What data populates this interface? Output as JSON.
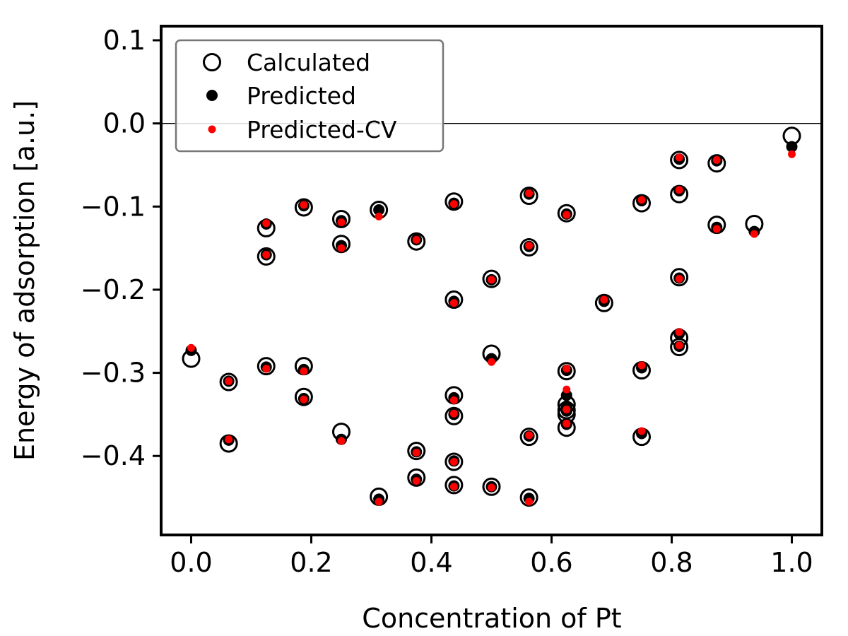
{
  "chart_data": {
    "type": "scatter",
    "title": "",
    "xlabel": "Concentration of Pt",
    "ylabel": "Energy of adsorption [a.u.]",
    "xlim": [
      -0.05,
      1.05
    ],
    "ylim": [
      -0.495,
      0.117
    ],
    "xticks": [
      0.0,
      0.2,
      0.4,
      0.6,
      0.8,
      1.0
    ],
    "xtick_labels": [
      "0.0",
      "0.2",
      "0.4",
      "0.6",
      "0.8",
      "1.0"
    ],
    "yticks": [
      0.1,
      0.0,
      -0.1,
      -0.2,
      -0.3,
      -0.4
    ],
    "ytick_labels": [
      "0.1",
      "0.0",
      "−0.1",
      "−0.2",
      "−0.3",
      "−0.4"
    ],
    "grid": false,
    "reference_line": {
      "y": 0.0
    },
    "legend": {
      "placement": "top-left",
      "entries": [
        "Calculated",
        "Predicted",
        "Predicted-CV"
      ]
    },
    "colors": {
      "calculated": "#000000",
      "predicted": "#000000",
      "predicted_cv": "#ff0000"
    },
    "series": [
      {
        "name": "Calculated",
        "marker": "open-circle",
        "x": [
          0.0,
          0.0625,
          0.0625,
          0.125,
          0.125,
          0.125,
          0.1875,
          0.1875,
          0.1875,
          0.25,
          0.25,
          0.25,
          0.3125,
          0.3125,
          0.375,
          0.375,
          0.375,
          0.4375,
          0.4375,
          0.4375,
          0.4375,
          0.4375,
          0.4375,
          0.5,
          0.5,
          0.5,
          0.5625,
          0.5625,
          0.5625,
          0.5625,
          0.625,
          0.625,
          0.625,
          0.625,
          0.625,
          0.625,
          0.6875,
          0.75,
          0.75,
          0.75,
          0.8125,
          0.8125,
          0.8125,
          0.8125,
          0.8125,
          0.875,
          0.875,
          0.9375,
          1.0
        ],
        "y": [
          -0.283,
          -0.311,
          -0.385,
          -0.126,
          -0.16,
          -0.292,
          -0.101,
          -0.292,
          -0.329,
          -0.115,
          -0.145,
          -0.371,
          -0.104,
          -0.449,
          -0.142,
          -0.394,
          -0.426,
          -0.094,
          -0.212,
          -0.327,
          -0.352,
          -0.407,
          -0.435,
          -0.187,
          -0.277,
          -0.437,
          -0.087,
          -0.149,
          -0.377,
          -0.45,
          -0.108,
          -0.298,
          -0.338,
          -0.345,
          -0.35,
          -0.366,
          -0.216,
          -0.096,
          -0.297,
          -0.377,
          -0.044,
          -0.085,
          -0.185,
          -0.258,
          -0.269,
          -0.048,
          -0.122,
          -0.121,
          -0.015
        ]
      },
      {
        "name": "Predicted",
        "marker": "filled-circle",
        "x": [
          0.0,
          0.0625,
          0.0625,
          0.125,
          0.125,
          0.125,
          0.1875,
          0.1875,
          0.1875,
          0.25,
          0.25,
          0.25,
          0.3125,
          0.3125,
          0.375,
          0.375,
          0.375,
          0.4375,
          0.4375,
          0.4375,
          0.4375,
          0.4375,
          0.4375,
          0.5,
          0.5,
          0.5,
          0.5625,
          0.5625,
          0.5625,
          0.5625,
          0.625,
          0.625,
          0.625,
          0.625,
          0.625,
          0.625,
          0.6875,
          0.75,
          0.75,
          0.75,
          0.8125,
          0.8125,
          0.8125,
          0.8125,
          0.8125,
          0.875,
          0.875,
          0.9375,
          1.0
        ],
        "y": [
          -0.273,
          -0.31,
          -0.381,
          -0.121,
          -0.158,
          -0.293,
          -0.099,
          -0.296,
          -0.331,
          -0.117,
          -0.147,
          -0.38,
          -0.104,
          -0.452,
          -0.14,
          -0.395,
          -0.428,
          -0.096,
          -0.214,
          -0.33,
          -0.35,
          -0.406,
          -0.436,
          -0.188,
          -0.283,
          -0.437,
          -0.085,
          -0.148,
          -0.376,
          -0.451,
          -0.109,
          -0.297,
          -0.327,
          -0.34,
          -0.346,
          -0.362,
          -0.214,
          -0.093,
          -0.294,
          -0.373,
          -0.043,
          -0.081,
          -0.186,
          -0.253,
          -0.268,
          -0.045,
          -0.125,
          -0.13,
          -0.028
        ]
      },
      {
        "name": "Predicted-CV",
        "marker": "small-filled-circle",
        "x": [
          0.0,
          0.0625,
          0.0625,
          0.125,
          0.125,
          0.125,
          0.1875,
          0.1875,
          0.1875,
          0.25,
          0.25,
          0.25,
          0.3125,
          0.3125,
          0.375,
          0.375,
          0.375,
          0.4375,
          0.4375,
          0.4375,
          0.4375,
          0.4375,
          0.4375,
          0.5,
          0.5,
          0.5,
          0.5625,
          0.5625,
          0.5625,
          0.5625,
          0.625,
          0.625,
          0.625,
          0.625,
          0.625,
          0.625,
          0.6875,
          0.75,
          0.75,
          0.75,
          0.8125,
          0.8125,
          0.8125,
          0.8125,
          0.8125,
          0.875,
          0.875,
          0.9375,
          1.0
        ],
        "y": [
          -0.27,
          -0.31,
          -0.38,
          -0.12,
          -0.158,
          -0.295,
          -0.098,
          -0.298,
          -0.332,
          -0.119,
          -0.15,
          -0.382,
          -0.112,
          -0.455,
          -0.14,
          -0.396,
          -0.43,
          -0.097,
          -0.216,
          -0.333,
          -0.349,
          -0.407,
          -0.437,
          -0.188,
          -0.287,
          -0.438,
          -0.084,
          -0.147,
          -0.375,
          -0.455,
          -0.11,
          -0.295,
          -0.32,
          -0.344,
          -0.361,
          -0.361,
          -0.212,
          -0.092,
          -0.291,
          -0.37,
          -0.041,
          -0.08,
          -0.187,
          -0.251,
          -0.267,
          -0.044,
          -0.127,
          -0.133,
          -0.037
        ]
      }
    ]
  }
}
